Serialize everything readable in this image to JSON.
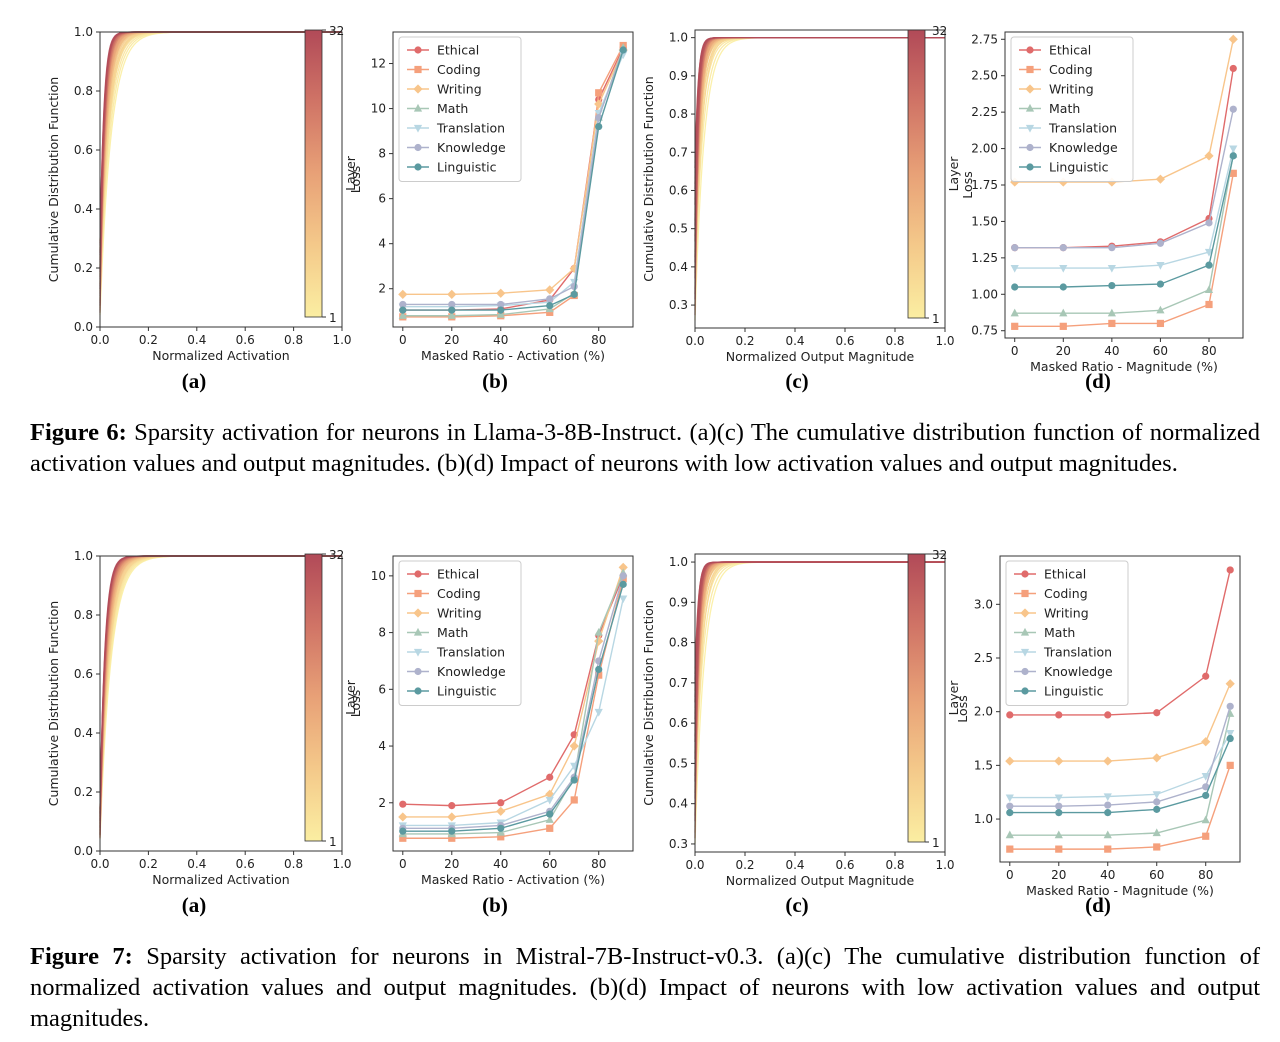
{
  "palette": {
    "categories": [
      "Ethical",
      "Coding",
      "Writing",
      "Math",
      "Translation",
      "Knowledge",
      "Linguistic"
    ],
    "colors": [
      "#e06b6b",
      "#f5a07c",
      "#f8c58b",
      "#a8c7b6",
      "#b8d7e3",
      "#aeb2cc",
      "#5b9aa0"
    ],
    "markers": [
      "circle",
      "square",
      "diamond",
      "triangle-up",
      "triangle-down",
      "circle",
      "circle"
    ],
    "layer_gradient": [
      "#fbeea2",
      "#f4c98a",
      "#e8a177",
      "#d07466",
      "#b14a58"
    ]
  },
  "figures": [
    {
      "label": "Figure 6:",
      "caption": "Sparsity activation for neurons in Llama-3-8B-Instruct. (a)(c) The cumulative distribution function of normalized activation values and output magnitudes. (b)(d) Impact of neurons with low activation values and output magnitudes.",
      "panels": [
        {
          "sublabel": "(a)",
          "chart_data": {
            "type": "line",
            "xlabel": "Normalized Activation",
            "ylabel": "Cumulative Distribution Function",
            "xlim": [
              0,
              1
            ],
            "ylim": [
              0,
              1
            ],
            "xticks": [
              "0.0",
              "0.2",
              "0.4",
              "0.6",
              "0.8",
              "1.0"
            ],
            "yticks": [
              "0.0",
              "0.2",
              "0.4",
              "0.6",
              "0.8",
              "1.0"
            ],
            "colorbar": {
              "label": "Layer",
              "min": "1",
              "max": "32"
            },
            "curves": {
              "count": 32,
              "start_y_range": [
                0.04,
                0.3
              ],
              "k_range": [
                22,
                65
              ],
              "grid": false
            }
          }
        },
        {
          "sublabel": "(b)",
          "chart_data": {
            "type": "line",
            "xlabel": "Masked Ratio - Activation (%)",
            "ylabel": "Loss",
            "xlim": [
              -4,
              94
            ],
            "ylim": [
              0.3,
              13.4
            ],
            "xticks": [
              0,
              20,
              40,
              60,
              80
            ],
            "yticks": [
              2,
              4,
              6,
              8,
              10,
              12
            ],
            "legend_position": "top-left",
            "x": [
              0,
              20,
              40,
              60,
              70,
              80,
              90
            ],
            "series": [
              {
                "name": "Ethical",
                "values": [
                  1.05,
                  1.05,
                  1.1,
                  1.5,
                  2.9,
                  10.4,
                  12.7
                ]
              },
              {
                "name": "Coding",
                "values": [
                  0.75,
                  0.75,
                  0.8,
                  0.95,
                  1.7,
                  10.7,
                  12.8
                ]
              },
              {
                "name": "Writing",
                "values": [
                  1.75,
                  1.75,
                  1.8,
                  1.95,
                  2.9,
                  10.2,
                  12.6
                ]
              },
              {
                "name": "Math",
                "values": [
                  0.8,
                  0.8,
                  0.85,
                  1.1,
                  1.8,
                  9.6,
                  12.7
                ]
              },
              {
                "name": "Translation",
                "values": [
                  1.2,
                  1.2,
                  1.25,
                  1.4,
                  2.3,
                  9.8,
                  12.4
                ]
              },
              {
                "name": "Knowledge",
                "values": [
                  1.3,
                  1.3,
                  1.3,
                  1.55,
                  2.1,
                  9.6,
                  12.6
                ]
              },
              {
                "name": "Linguistic",
                "values": [
                  1.05,
                  1.05,
                  1.05,
                  1.25,
                  1.75,
                  9.2,
                  12.6
                ]
              }
            ]
          }
        },
        {
          "sublabel": "(c)",
          "chart_data": {
            "type": "line",
            "xlabel": "Normalized Output Magnitude",
            "ylabel": "Cumulative Distribution Function",
            "xlim": [
              0,
              1
            ],
            "ylim": [
              0.24,
              1.02
            ],
            "xticks": [
              "0.0",
              "0.2",
              "0.4",
              "0.6",
              "0.8",
              "1.0"
            ],
            "yticks": [
              "0.3",
              "0.4",
              "0.5",
              "0.6",
              "0.7",
              "0.8",
              "0.9",
              "1.0"
            ],
            "colorbar": {
              "label": "Layer",
              "min": "1",
              "max": "32"
            },
            "curves": {
              "count": 32,
              "start_y_range": [
                0.26,
                0.7
              ],
              "k_range": [
                28,
                90
              ],
              "grid": false
            }
          }
        },
        {
          "sublabel": "(d)",
          "chart_data": {
            "type": "line",
            "xlabel": "Masked Ratio - Magnitude (%)",
            "ylabel": "Loss",
            "xlim": [
              -4,
              94
            ],
            "ylim": [
              0.7,
              2.8
            ],
            "xticks": [
              0,
              20,
              40,
              60,
              80
            ],
            "yticks": [
              "0.75",
              "1.00",
              "1.25",
              "1.50",
              "1.75",
              "2.00",
              "2.25",
              "2.50",
              "2.75"
            ],
            "legend_position": "top-left",
            "x": [
              0,
              20,
              40,
              60,
              80,
              90
            ],
            "series": [
              {
                "name": "Ethical",
                "values": [
                  1.32,
                  1.32,
                  1.33,
                  1.36,
                  1.52,
                  2.55
                ]
              },
              {
                "name": "Coding",
                "values": [
                  0.78,
                  0.78,
                  0.8,
                  0.8,
                  0.93,
                  1.83
                ]
              },
              {
                "name": "Writing",
                "values": [
                  1.77,
                  1.77,
                  1.77,
                  1.79,
                  1.95,
                  2.75
                ]
              },
              {
                "name": "Math",
                "values": [
                  0.87,
                  0.87,
                  0.87,
                  0.89,
                  1.03,
                  1.96
                ]
              },
              {
                "name": "Translation",
                "values": [
                  1.18,
                  1.18,
                  1.18,
                  1.2,
                  1.29,
                  2.0
                ]
              },
              {
                "name": "Knowledge",
                "values": [
                  1.32,
                  1.32,
                  1.32,
                  1.35,
                  1.49,
                  2.27
                ]
              },
              {
                "name": "Linguistic",
                "values": [
                  1.05,
                  1.05,
                  1.06,
                  1.07,
                  1.2,
                  1.95
                ]
              }
            ]
          }
        }
      ]
    },
    {
      "label": "Figure 7:",
      "caption": "Sparsity activation for neurons in Mistral-7B-Instruct-v0.3. (a)(c) The cumulative distribution function of normalized activation values and output magnitudes. (b)(d) Impact of neurons with low activation values and output magnitudes.",
      "panels": [
        {
          "sublabel": "(a)",
          "chart_data": {
            "type": "line",
            "xlabel": "Normalized Activation",
            "ylabel": "Cumulative Distribution Function",
            "xlim": [
              0,
              1
            ],
            "ylim": [
              0,
              1
            ],
            "xticks": [
              "0.0",
              "0.2",
              "0.4",
              "0.6",
              "0.8",
              "1.0"
            ],
            "yticks": [
              "0.0",
              "0.2",
              "0.4",
              "0.6",
              "0.8",
              "1.0"
            ],
            "colorbar": {
              "label": "Layer",
              "min": "1",
              "max": "32"
            },
            "curves": {
              "count": 32,
              "start_y_range": [
                0.04,
                0.15
              ],
              "k_range": [
                22,
                50
              ],
              "grid": false
            }
          }
        },
        {
          "sublabel": "(b)",
          "chart_data": {
            "type": "line",
            "xlabel": "Masked Ratio - Activation (%)",
            "ylabel": "Loss",
            "xlim": [
              -4,
              94
            ],
            "ylim": [
              0.3,
              10.7
            ],
            "xticks": [
              0,
              20,
              40,
              60,
              80
            ],
            "yticks": [
              2,
              4,
              6,
              8,
              10
            ],
            "legend_position": "top-left",
            "x": [
              0,
              20,
              40,
              60,
              70,
              80,
              90
            ],
            "series": [
              {
                "name": "Ethical",
                "values": [
                  1.95,
                  1.9,
                  2.0,
                  2.9,
                  4.4,
                  7.9,
                  10.0
                ]
              },
              {
                "name": "Coding",
                "values": [
                  0.75,
                  0.75,
                  0.8,
                  1.1,
                  2.1,
                  6.5,
                  9.9
                ]
              },
              {
                "name": "Writing",
                "values": [
                  1.5,
                  1.5,
                  1.7,
                  2.3,
                  4.0,
                  7.7,
                  10.3
                ]
              },
              {
                "name": "Math",
                "values": [
                  0.9,
                  0.9,
                  0.95,
                  1.4,
                  2.9,
                  8.0,
                  10.1
                ]
              },
              {
                "name": "Translation",
                "values": [
                  1.2,
                  1.2,
                  1.3,
                  2.1,
                  3.3,
                  5.2,
                  9.2
                ]
              },
              {
                "name": "Knowledge",
                "values": [
                  1.1,
                  1.1,
                  1.2,
                  1.7,
                  2.9,
                  7.0,
                  10.0
                ]
              },
              {
                "name": "Linguistic",
                "values": [
                  1.0,
                  1.0,
                  1.1,
                  1.6,
                  2.8,
                  6.7,
                  9.7
                ]
              }
            ]
          }
        },
        {
          "sublabel": "(c)",
          "chart_data": {
            "type": "line",
            "xlabel": "Normalized Output Magnitude",
            "ylabel": "Cumulative Distribution Function",
            "xlim": [
              0,
              1
            ],
            "ylim": [
              0.28,
              1.02
            ],
            "xticks": [
              "0.0",
              "0.2",
              "0.4",
              "0.6",
              "0.8",
              "1.0"
            ],
            "yticks": [
              "0.3",
              "0.4",
              "0.5",
              "0.6",
              "0.7",
              "0.8",
              "0.9",
              "1.0"
            ],
            "colorbar": {
              "label": "Layer",
              "min": "1",
              "max": "32"
            },
            "curves": {
              "count": 32,
              "start_y_range": [
                0.3,
                0.75
              ],
              "k_range": [
                28,
                90
              ],
              "grid": false
            }
          }
        },
        {
          "sublabel": "(d)",
          "chart_data": {
            "type": "line",
            "xlabel": "Masked Ratio - Magnitude (%)",
            "ylabel": "Loss",
            "xlim": [
              -4,
              94
            ],
            "ylim": [
              0.6,
              3.45
            ],
            "xticks": [
              0,
              20,
              40,
              60,
              80
            ],
            "yticks": [
              "1.0",
              "1.5",
              "2.0",
              "2.5",
              "3.0"
            ],
            "legend_position": "top-left",
            "x": [
              0,
              20,
              40,
              60,
              80,
              90
            ],
            "series": [
              {
                "name": "Ethical",
                "values": [
                  1.97,
                  1.97,
                  1.97,
                  1.99,
                  2.33,
                  3.32
                ]
              },
              {
                "name": "Coding",
                "values": [
                  0.72,
                  0.72,
                  0.72,
                  0.74,
                  0.84,
                  1.5
                ]
              },
              {
                "name": "Writing",
                "values": [
                  1.54,
                  1.54,
                  1.54,
                  1.57,
                  1.72,
                  2.26
                ]
              },
              {
                "name": "Math",
                "values": [
                  0.85,
                  0.85,
                  0.85,
                  0.87,
                  0.99,
                  1.98
                ]
              },
              {
                "name": "Translation",
                "values": [
                  1.2,
                  1.2,
                  1.21,
                  1.23,
                  1.4,
                  1.8
                ]
              },
              {
                "name": "Knowledge",
                "values": [
                  1.12,
                  1.12,
                  1.13,
                  1.16,
                  1.3,
                  2.05
                ]
              },
              {
                "name": "Linguistic",
                "values": [
                  1.06,
                  1.06,
                  1.06,
                  1.09,
                  1.22,
                  1.75
                ]
              }
            ]
          }
        }
      ]
    }
  ]
}
